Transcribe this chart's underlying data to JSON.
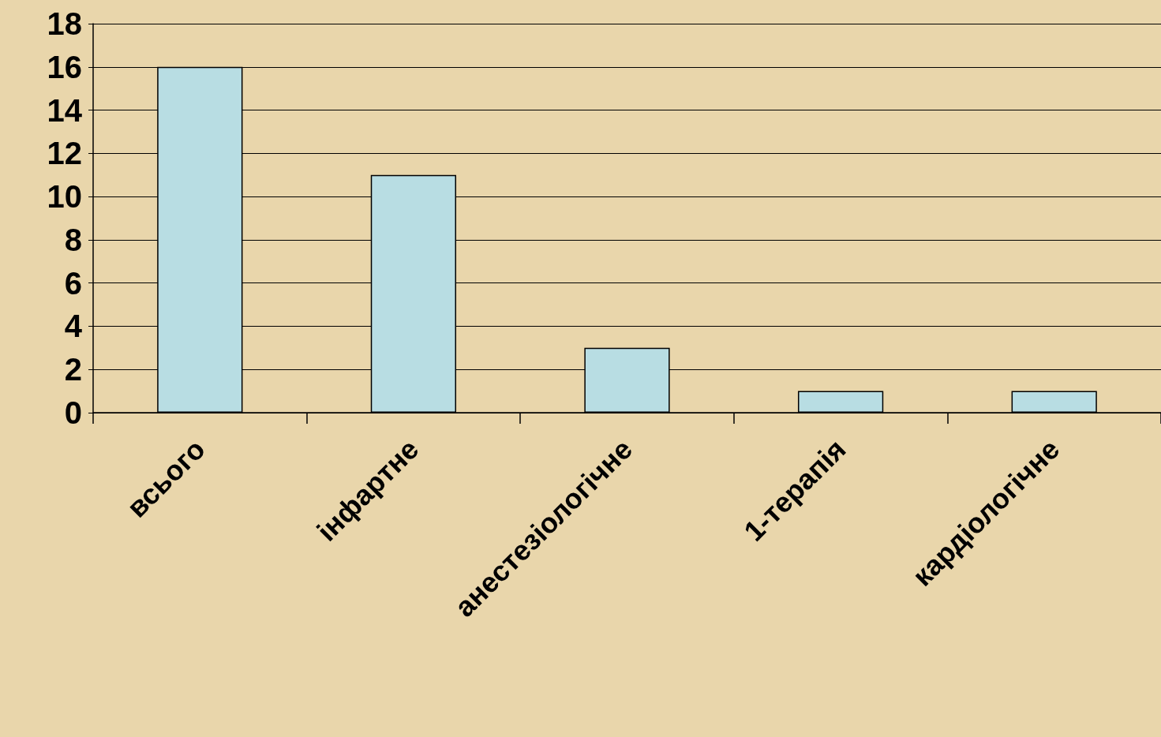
{
  "chart_data": {
    "type": "bar",
    "categories": [
      "всього",
      "інфартне",
      "анестезіологічне",
      "1-терапія",
      "кардіологічне"
    ],
    "values": [
      16,
      11,
      3,
      1,
      1
    ],
    "color": "#b8dde3",
    "ylim": [
      0,
      18
    ],
    "yticks": [
      0,
      2,
      4,
      6,
      8,
      10,
      12,
      14,
      16,
      18
    ],
    "grid": "y"
  }
}
